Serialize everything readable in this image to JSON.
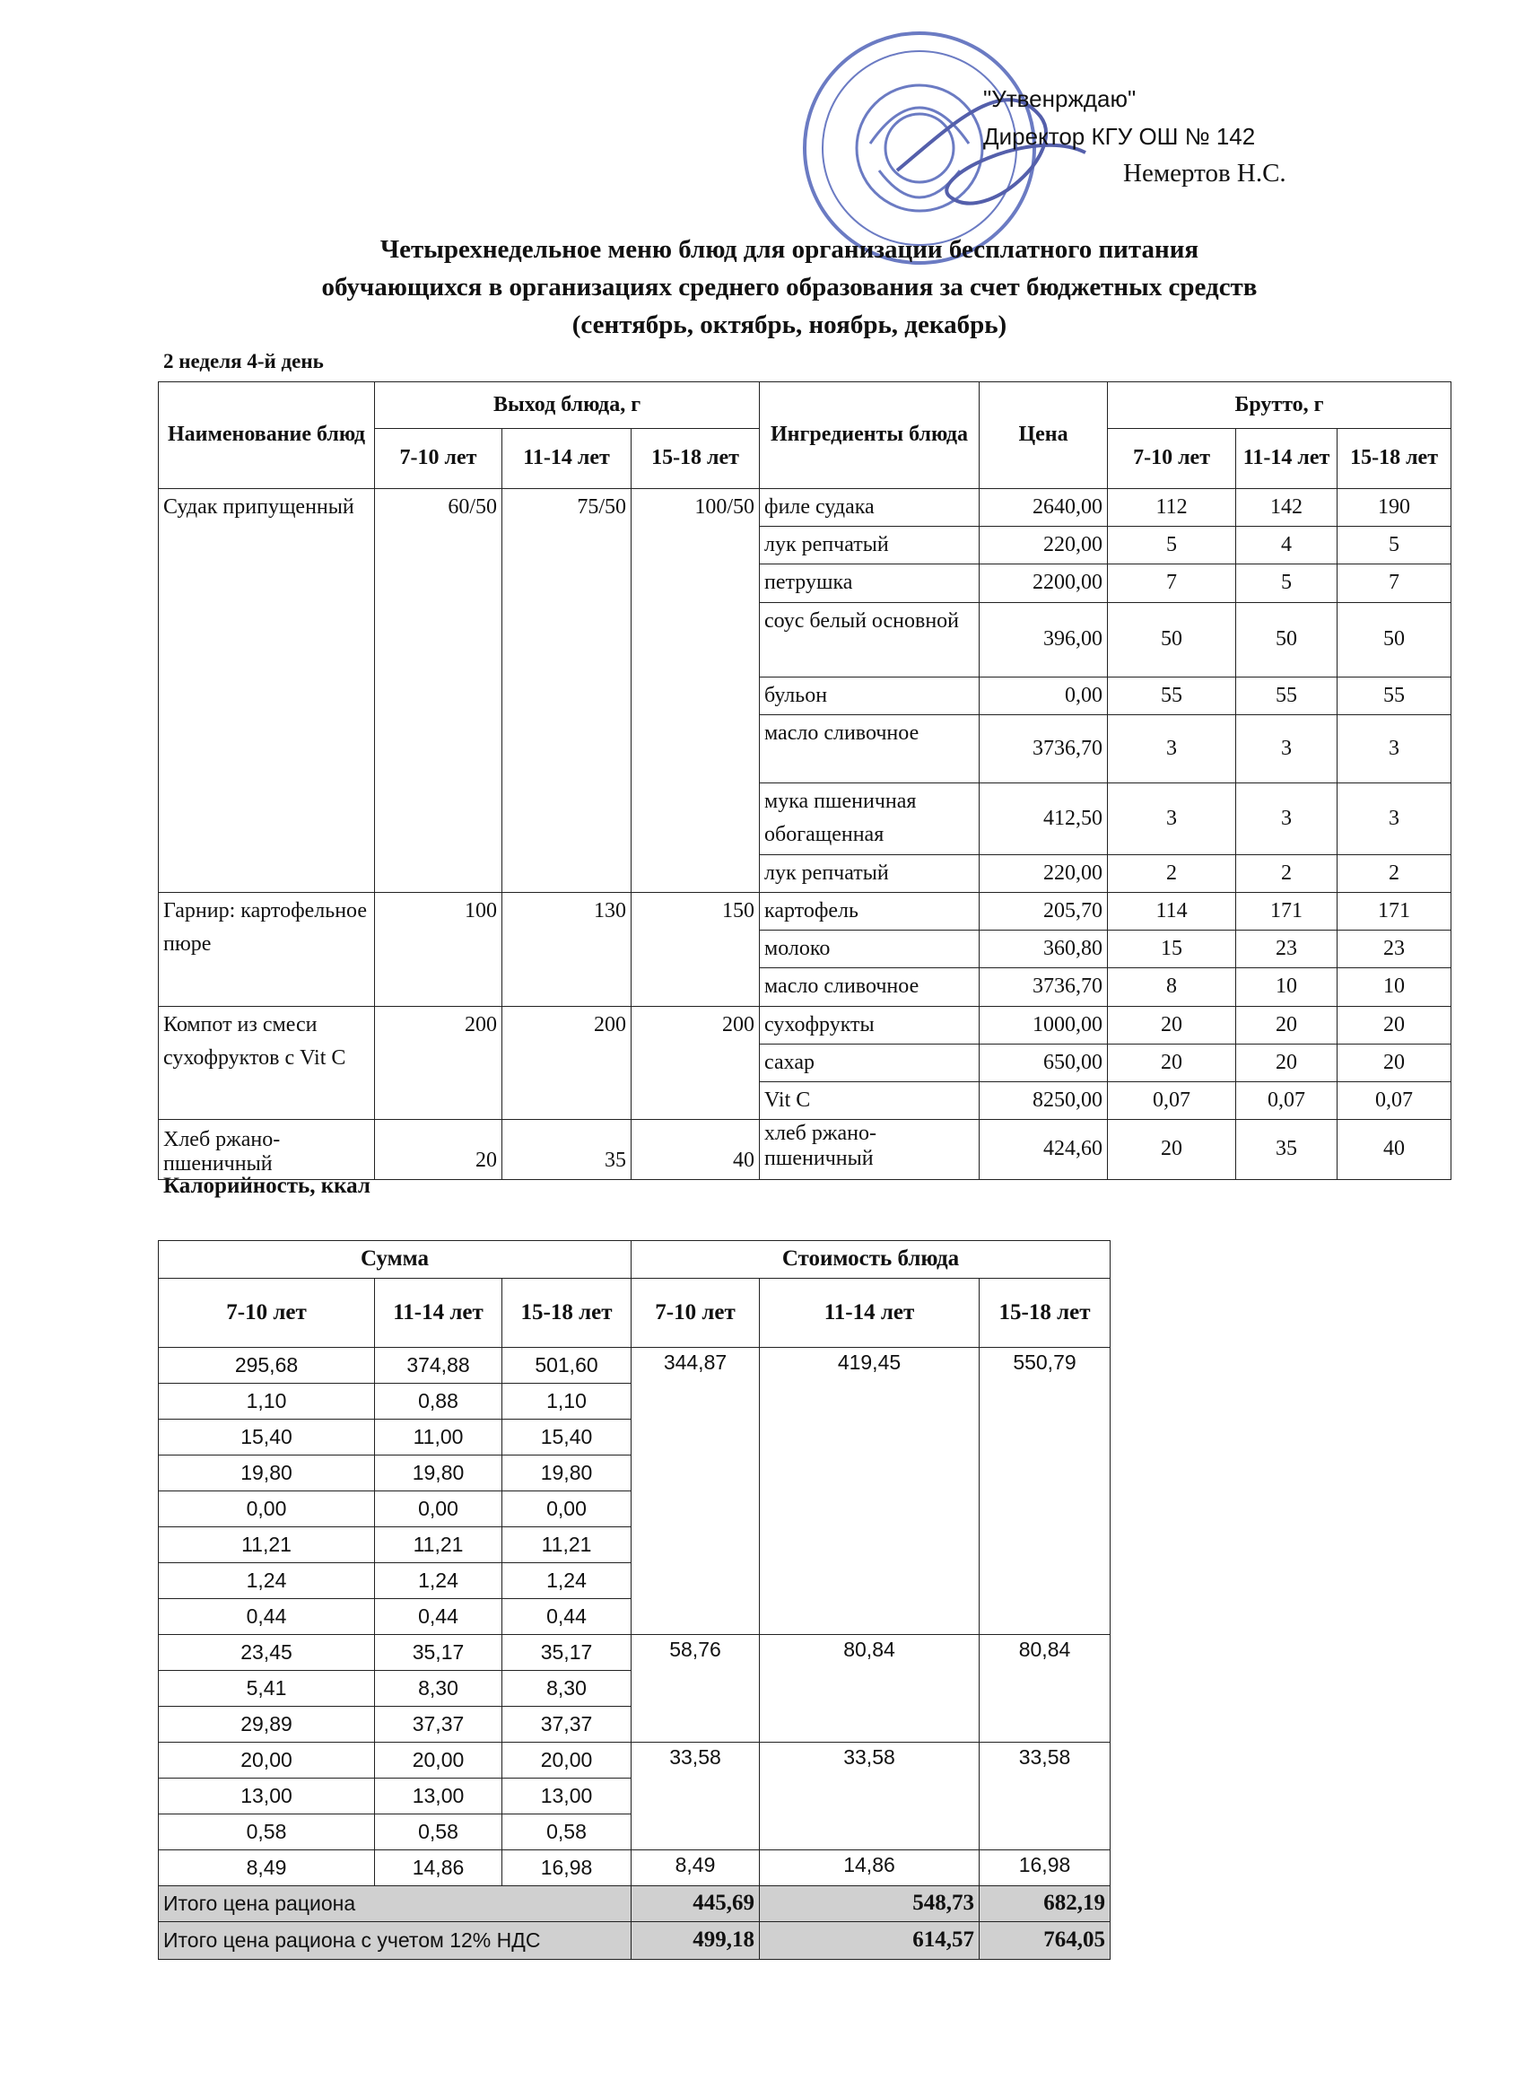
{
  "approval": {
    "line1": "\"Утвенрждаю\"",
    "line2": "Директор КГУ ОШ № 142",
    "line3": "Немертов Н.С."
  },
  "title": {
    "lines": [
      "Четырехнедельное меню блюд для организации бесплатного питания",
      "обучающихся в организациях среднего образования за счет бюджетных средств",
      "(сентябрь, октябрь, ноябрь, декабрь)"
    ]
  },
  "subtitle": "2 неделя 4-й день",
  "menu_table": {
    "headers": {
      "dish": "Наименование блюд",
      "yield": "Выход блюда, г",
      "ingredients": "Ингредиенты блюда",
      "price": "Цена",
      "gross": "Брутто, г",
      "ages": [
        "7-10 лет",
        "11-14 лет",
        "15-18 лет"
      ],
      "gross_ages": [
        "7-10 лет",
        "11-14 лет",
        "15-18 лет"
      ]
    },
    "dishes": [
      {
        "name": "Судак припущенный",
        "yield": [
          "60/50",
          "75/50",
          "100/50"
        ],
        "ingredients": [
          [
            "филе судака",
            "2640,00",
            "112",
            "142",
            "190"
          ],
          [
            "лук репчатый",
            "220,00",
            "5",
            "4",
            "5"
          ],
          [
            "петрушка",
            "2200,00",
            "7",
            "5",
            "7"
          ],
          [
            "соус белый основной",
            "396,00",
            "50",
            "50",
            "50"
          ],
          [
            "бульон",
            "0,00",
            "55",
            "55",
            "55"
          ],
          [
            "масло сливочное",
            "3736,70",
            "3",
            "3",
            "3"
          ],
          [
            "мука пшеничная обогащенная",
            "412,50",
            "3",
            "3",
            "3"
          ],
          [
            "лук репчатый",
            "220,00",
            "2",
            "2",
            "2"
          ]
        ]
      },
      {
        "name": "Гарнир: картофельное пюре",
        "yield": [
          "100",
          "130",
          "150"
        ],
        "ingredients": [
          [
            "картофель",
            "205,70",
            "114",
            "171",
            "171"
          ],
          [
            "молоко",
            "360,80",
            "15",
            "23",
            "23"
          ],
          [
            "масло сливочное",
            "3736,70",
            "8",
            "10",
            "10"
          ]
        ]
      },
      {
        "name": "Компот из смеси сухофруктов с Vit C",
        "yield": [
          "200",
          "200",
          "200"
        ],
        "ingredients": [
          [
            "сухофрукты",
            "1000,00",
            "20",
            "20",
            "20"
          ],
          [
            "сахар",
            "650,00",
            "20",
            "20",
            "20"
          ],
          [
            "Vit C",
            "8250,00",
            "0,07",
            "0,07",
            "0,07"
          ]
        ]
      },
      {
        "name": "Хлеб ржано-пшеничный",
        "yield": [
          "20",
          "35",
          "40"
        ],
        "ingredients": [
          [
            "хлеб ржано-пшеничный",
            "424,60",
            "20",
            "35",
            "40"
          ]
        ]
      }
    ]
  },
  "calories_label": "Калорийность, ккал",
  "cost_table": {
    "headers": {
      "sum": "Сумма",
      "cost": "Стоимость блюда",
      "ages": [
        "7-10 лет",
        "11-14 лет",
        "15-18 лет",
        "7-10 лет",
        "11-14 лет",
        "15-18 лет"
      ]
    },
    "rows": [
      [
        "295,68",
        "374,88",
        "501,60"
      ],
      [
        "1,10",
        "0,88",
        "1,10"
      ],
      [
        "15,40",
        "11,00",
        "15,40"
      ],
      [
        "19,80",
        "19,80",
        "19,80"
      ],
      [
        "0,00",
        "0,00",
        "0,00"
      ],
      [
        "11,21",
        "11,21",
        "11,21"
      ],
      [
        "1,24",
        "1,24",
        "1,24"
      ],
      [
        "0,44",
        "0,44",
        "0,44"
      ],
      [
        "23,45",
        "35,17",
        "35,17"
      ],
      [
        "5,41",
        "8,30",
        "8,30"
      ],
      [
        "29,89",
        "37,37",
        "37,37"
      ],
      [
        "20,00",
        "20,00",
        "20,00"
      ],
      [
        "13,00",
        "13,00",
        "13,00"
      ],
      [
        "0,58",
        "0,58",
        "0,58"
      ],
      [
        "8,49",
        "14,86",
        "16,98"
      ]
    ],
    "costs": [
      [
        "344,87",
        "419,45",
        "550,79"
      ],
      [
        "58,76",
        "80,84",
        "80,84"
      ],
      [
        "33,58",
        "33,58",
        "33,58"
      ],
      [
        "8,49",
        "14,86",
        "16,98"
      ]
    ],
    "totals": [
      {
        "label": "Итого цена рациона",
        "values": [
          "445,69",
          "548,73",
          "682,19"
        ]
      },
      {
        "label": "Итого цена рациона с учетом 12% НДС",
        "values": [
          "499,18",
          "614,57",
          "764,05"
        ]
      }
    ]
  }
}
